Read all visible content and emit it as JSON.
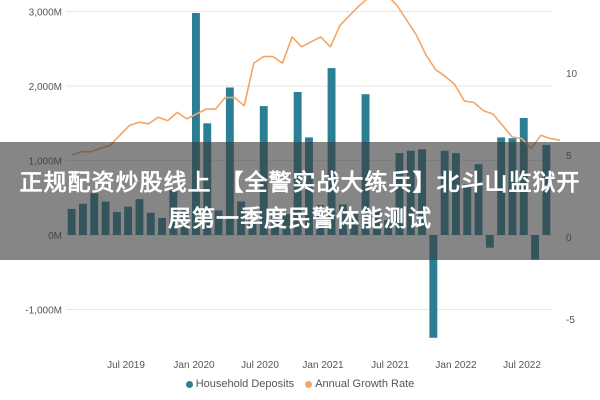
{
  "banner": {
    "title": "正规配资炒股线上 【全警实战大练兵】北斗山监狱开展第一季度民警体能测试"
  },
  "colors": {
    "deposits": "#2a7f94",
    "growth": "#f4a566",
    "banner_bg": "#3c3c3c"
  },
  "chart_data": {
    "type": "bar",
    "secondary_type": "line",
    "x_tick_labels": [
      "Jul 2019",
      "Jan 2020",
      "Jul 2020",
      "Jan 2021",
      "Jul 2021",
      "Jan 2022",
      "Jul 2022"
    ],
    "left_axis": {
      "ticks": [
        3000,
        2000,
        1000,
        0,
        -1000
      ],
      "tick_labels": [
        "3,000M",
        "2,000M",
        "1,000M",
        "0M",
        "-1,000M"
      ],
      "ylim": [
        -1400,
        3100
      ]
    },
    "right_axis": {
      "ticks": [
        10,
        5,
        0,
        -5
      ],
      "tick_labels": [
        "10",
        "5",
        "0",
        "-5"
      ],
      "ylim": [
        -7,
        15
      ]
    },
    "series": [
      {
        "name": "Household Deposits",
        "kind": "bar",
        "axis": "left",
        "values": [
          350,
          420,
          560,
          450,
          310,
          380,
          480,
          300,
          230,
          620,
          330,
          2980,
          1500,
          330,
          1980,
          450,
          220,
          1730,
          300,
          280,
          1920,
          1310,
          400,
          2240,
          410,
          300,
          1890,
          320,
          200,
          1100,
          1130,
          1150,
          -1380,
          1130,
          1100,
          680,
          950,
          -170,
          1310,
          1300,
          1570,
          -330,
          1210
        ]
      },
      {
        "name": "Annual Growth Rate",
        "kind": "line",
        "axis": "right",
        "values": [
          5.0,
          5.2,
          5.2,
          5.4,
          5.6,
          6.2,
          6.8,
          7.0,
          6.9,
          7.3,
          7.1,
          7.6,
          7.2,
          7.5,
          7.8,
          7.8,
          8.5,
          8.5,
          8.0,
          10.6,
          11.0,
          11.0,
          10.6,
          12.2,
          11.6,
          11.9,
          12.2,
          11.6,
          12.9,
          13.5,
          14.1,
          14.6,
          14.9,
          14.7,
          14.1,
          13.2,
          12.3,
          11.1,
          10.2,
          9.8,
          9.3,
          8.3,
          8.2,
          7.7,
          7.5,
          6.8,
          6.1,
          6.0,
          5.4,
          6.2,
          6.0,
          5.9
        ]
      }
    ],
    "legend": [
      "Household Deposits",
      "Annual Growth Rate"
    ],
    "legend_position": "bottom",
    "grid": true
  }
}
